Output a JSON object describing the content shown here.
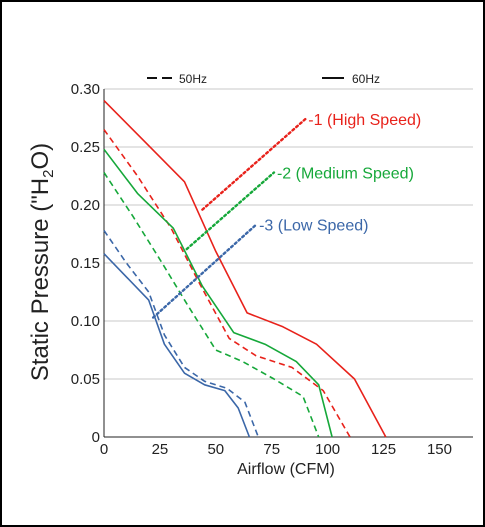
{
  "chart_data": {
    "type": "line",
    "xlabel": "Airflow (CFM)",
    "ylabel_main": "Static Pressure (\"H",
    "ylabel_sub": "2",
    "ylabel_end": "O)",
    "xlim": [
      0,
      165
    ],
    "ylim": [
      0,
      0.3
    ],
    "xticks": [
      0,
      25,
      50,
      75,
      100,
      125,
      150
    ],
    "yticks": [
      0,
      0.05,
      0.1,
      0.15,
      0.2,
      0.25,
      0.3
    ],
    "xtick_labels": [
      "0",
      "25",
      "50",
      "75",
      "100",
      "125",
      "150"
    ],
    "ytick_labels": [
      "0",
      "0.05",
      "0.10",
      "0.15",
      "0.20",
      "0.25",
      "0.30"
    ],
    "grid": "horizontal",
    "legend": {
      "position": "top",
      "items": [
        {
          "label": "50Hz",
          "style": "dashed"
        },
        {
          "label": "60Hz",
          "style": "solid"
        }
      ]
    },
    "colors": {
      "high": "#e8221b",
      "medium": "#16a83a",
      "low": "#3b67a8"
    },
    "series": [
      {
        "name": "-1 (High Speed) 60Hz",
        "color": "#e8221b",
        "dashed": false,
        "x": [
          0,
          18,
          36,
          50,
          64,
          80,
          95,
          112,
          126
        ],
        "y": [
          0.29,
          0.255,
          0.22,
          0.16,
          0.107,
          0.095,
          0.08,
          0.05,
          0
        ]
      },
      {
        "name": "-1 (High Speed) 50Hz",
        "color": "#e8221b",
        "dashed": true,
        "x": [
          0,
          15,
          30,
          42,
          56,
          68,
          84,
          98,
          110
        ],
        "y": [
          0.265,
          0.225,
          0.18,
          0.135,
          0.085,
          0.07,
          0.06,
          0.04,
          0
        ]
      },
      {
        "name": "-2 (Medium Speed) 60Hz",
        "color": "#16a83a",
        "dashed": false,
        "x": [
          0,
          15,
          31,
          44,
          58,
          72,
          86,
          96,
          102
        ],
        "y": [
          0.248,
          0.21,
          0.18,
          0.13,
          0.09,
          0.08,
          0.065,
          0.045,
          0
        ]
      },
      {
        "name": "-2 (Medium Speed) 50Hz",
        "color": "#16a83a",
        "dashed": true,
        "x": [
          0,
          13,
          26,
          37,
          50,
          62,
          76,
          89,
          96
        ],
        "y": [
          0.228,
          0.19,
          0.15,
          0.115,
          0.075,
          0.065,
          0.05,
          0.035,
          0
        ]
      },
      {
        "name": "-3 (Low Speed) 60Hz",
        "color": "#3b67a8",
        "dashed": false,
        "x": [
          0,
          10,
          20,
          27,
          36,
          45,
          54,
          60,
          65
        ],
        "y": [
          0.158,
          0.138,
          0.118,
          0.08,
          0.055,
          0.045,
          0.04,
          0.025,
          0
        ]
      },
      {
        "name": "-3 (Low Speed) 50Hz",
        "color": "#3b67a8",
        "dashed": true,
        "x": [
          0,
          10,
          20,
          27,
          36,
          45,
          55,
          63,
          69
        ],
        "y": [
          0.178,
          0.15,
          0.125,
          0.088,
          0.06,
          0.048,
          0.042,
          0.03,
          0
        ]
      }
    ],
    "annotations": [
      {
        "text": "-1 (High Speed)",
        "color": "#e8221b",
        "from": [
          44,
          0.196
        ],
        "to": [
          90,
          0.274
        ]
      },
      {
        "text": "-2 (Medium Speed)",
        "color": "#16a83a",
        "from": [
          37,
          0.162
        ],
        "to": [
          76,
          0.228
        ]
      },
      {
        "text": "-3 (Low Speed)",
        "color": "#3b67a8",
        "from": [
          22,
          0.103
        ],
        "to": [
          68,
          0.183
        ]
      }
    ]
  }
}
